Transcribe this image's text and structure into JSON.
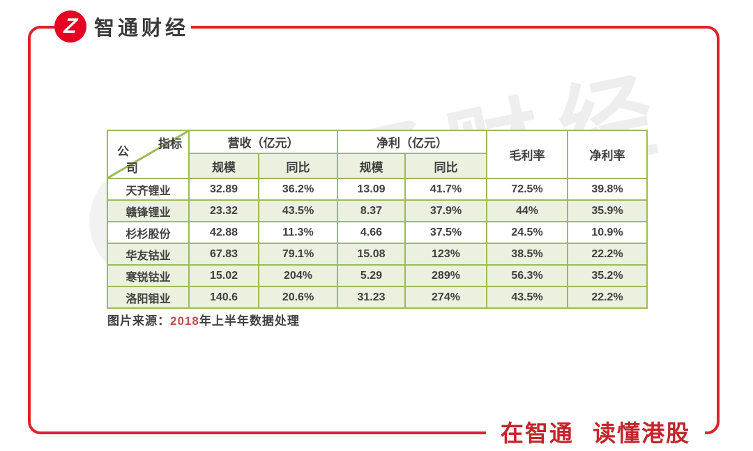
{
  "brand": {
    "name": "智通财经",
    "logo_letter": "Z"
  },
  "slogan": "在智通 读懂港股",
  "watermark": {
    "text": "智通财经"
  },
  "caption": {
    "prefix": "图片来源：",
    "year": "2018",
    "suffix": "年上半年数据处理"
  },
  "table": {
    "corner": {
      "top_right": "指标",
      "bottom_left": "公司"
    },
    "groups": [
      {
        "label": "营收（亿元）"
      },
      {
        "label": "净利（亿元）"
      },
      {
        "label": "毛利率"
      },
      {
        "label": "净利率"
      }
    ],
    "subheaders": [
      "规模",
      "同比",
      "规模",
      "同比"
    ],
    "rows": [
      {
        "company": "天齐锂业",
        "values": [
          "32.89",
          "36.2%",
          "13.09",
          "41.7%",
          "72.5%",
          "39.8%"
        ],
        "shaded": false
      },
      {
        "company": "赣锋锂业",
        "values": [
          "23.32",
          "43.5%",
          "8.37",
          "37.9%",
          "44%",
          "35.9%"
        ],
        "shaded": true
      },
      {
        "company": "杉杉股份",
        "values": [
          "42.88",
          "11.3%",
          "4.66",
          "37.5%",
          "24.5%",
          "10.9%"
        ],
        "shaded": false
      },
      {
        "company": "华友钴业",
        "values": [
          "67.83",
          "79.1%",
          "15.08",
          "123%",
          "38.5%",
          "22.2%"
        ],
        "shaded": true
      },
      {
        "company": "寒锐钴业",
        "values": [
          "15.02",
          "204%",
          "5.29",
          "289%",
          "56.3%",
          "35.2%"
        ],
        "shaded": true
      },
      {
        "company": "洛阳钼业",
        "values": [
          "140.6",
          "20.6%",
          "31.23",
          "274%",
          "43.5%",
          "22.2%"
        ],
        "shaded": true
      }
    ]
  },
  "chart_data": {
    "type": "table",
    "companies": [
      "天齐锂业",
      "赣锋锂业",
      "杉杉股份",
      "华友钴业",
      "寒锐钴业",
      "洛阳钼业"
    ],
    "series": [
      {
        "name": "营收 规模（亿元）",
        "values": [
          32.89,
          23.32,
          42.88,
          67.83,
          15.02,
          140.6
        ]
      },
      {
        "name": "营收 同比",
        "values": [
          "36.2%",
          "43.5%",
          "11.3%",
          "79.1%",
          "204%",
          "20.6%"
        ]
      },
      {
        "name": "净利 规模（亿元）",
        "values": [
          13.09,
          8.37,
          4.66,
          15.08,
          5.29,
          31.23
        ]
      },
      {
        "name": "净利 同比",
        "values": [
          "41.7%",
          "37.9%",
          "37.5%",
          "123%",
          "289%",
          "274%"
        ]
      },
      {
        "name": "毛利率",
        "values": [
          "72.5%",
          "44%",
          "24.5%",
          "38.5%",
          "56.3%",
          "43.5%"
        ]
      },
      {
        "name": "净利率",
        "values": [
          "39.8%",
          "35.9%",
          "10.9%",
          "22.2%",
          "35.2%",
          "22.2%"
        ]
      }
    ],
    "source_note": "图片来源：2018年上半年数据处理"
  },
  "colors": {
    "red_frame": "#e0202e",
    "red_logo": "#e60023",
    "red_slogan": "#c5242c",
    "green_border": "#9bbb59",
    "green_fill": "#ebf1de",
    "text_dark": "#3f3f3f",
    "caption_year": "#b8504b",
    "watermark_gray": "#c9c9c9"
  }
}
